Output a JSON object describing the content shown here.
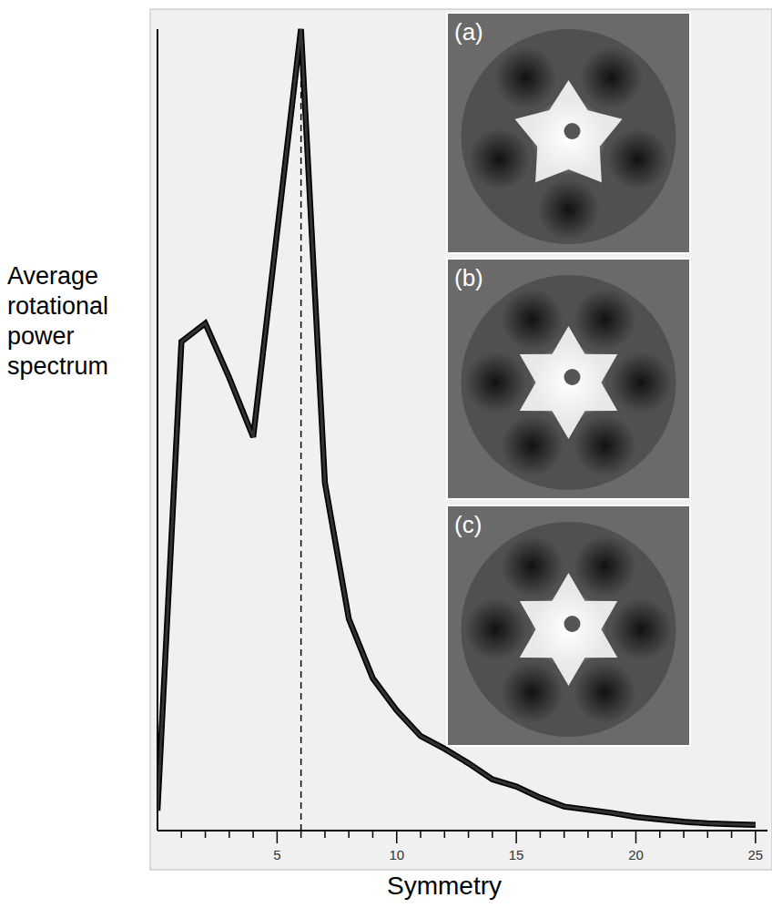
{
  "chart_data": {
    "type": "line",
    "x_label": "Symmetry",
    "y_label": "Average rotational power spectrum",
    "x": [
      0,
      1,
      2,
      3,
      4,
      5,
      6,
      7,
      8,
      9,
      10,
      11,
      12,
      13,
      14,
      15,
      16,
      17,
      18,
      19,
      20,
      21,
      22,
      23,
      24,
      25
    ],
    "values": [
      2.5,
      61,
      63.3,
      56.5,
      49.1,
      74.7,
      100,
      43.4,
      26.4,
      19,
      15,
      11.8,
      10.2,
      8.4,
      6.4,
      5.5,
      4.1,
      3,
      2.6,
      2.2,
      1.7,
      1.4,
      1.1,
      0.9,
      0.8,
      0.7
    ],
    "color": "#333333",
    "xlim": [
      0,
      25.5
    ],
    "ylim": [
      0,
      100
    ],
    "xticks": [
      5,
      10,
      15,
      20,
      25
    ],
    "xminor": [
      1,
      2,
      3,
      4,
      6,
      7,
      8,
      9,
      11,
      12,
      13,
      14,
      16,
      17,
      18,
      19,
      21,
      22,
      23,
      24
    ],
    "reference_line_x": 6,
    "tick_labels": "x",
    "grid": false,
    "insets": [
      "(a)",
      "(b)",
      "(c)"
    ]
  }
}
